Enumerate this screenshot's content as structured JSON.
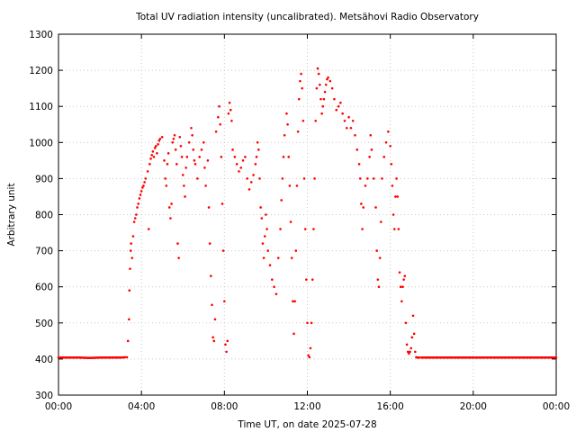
{
  "chart_data": {
    "type": "scatter",
    "title": "Total UV radiation intensity (uncalibrated). Metsähovi Radio Observatory",
    "xlabel": "Time UT, on date 2025-07-28",
    "ylabel": "Arbitrary unit",
    "x_unit": "hours UT",
    "xlim": [
      0,
      24
    ],
    "ylim": [
      300,
      1300
    ],
    "grid": true,
    "grid_style": "dotted",
    "legend": "none",
    "marker_color": "#ff0000",
    "x_ticks": [
      {
        "value": 0,
        "label": "00:00"
      },
      {
        "value": 4,
        "label": "04:00"
      },
      {
        "value": 8,
        "label": "08:00"
      },
      {
        "value": 12,
        "label": "12:00"
      },
      {
        "value": 16,
        "label": "16:00"
      },
      {
        "value": 20,
        "label": "20:00"
      },
      {
        "value": 24,
        "label": "00:00"
      }
    ],
    "y_ticks": [
      300,
      400,
      500,
      600,
      700,
      800,
      900,
      1000,
      1100,
      1200,
      1300
    ],
    "series": [
      {
        "points": [
          [
            0.0,
            404
          ],
          [
            0.5,
            404
          ],
          [
            1.0,
            404
          ],
          [
            1.5,
            403
          ],
          [
            2.0,
            404
          ],
          [
            2.5,
            404
          ],
          [
            3.0,
            404
          ],
          [
            3.3,
            405
          ],
          [
            3.35,
            450
          ],
          [
            3.4,
            510
          ],
          [
            3.42,
            590
          ],
          [
            3.45,
            650
          ],
          [
            3.48,
            700
          ],
          [
            3.5,
            720
          ],
          [
            3.55,
            680
          ],
          [
            3.6,
            740
          ],
          [
            3.65,
            780
          ],
          [
            3.7,
            790
          ],
          [
            3.75,
            800
          ],
          [
            3.8,
            820
          ],
          [
            3.85,
            830
          ],
          [
            3.9,
            845
          ],
          [
            3.95,
            855
          ],
          [
            4.0,
            865
          ],
          [
            4.05,
            875
          ],
          [
            4.1,
            880
          ],
          [
            4.15,
            890
          ],
          [
            4.2,
            900
          ],
          [
            4.3,
            920
          ],
          [
            4.35,
            760
          ],
          [
            4.4,
            940
          ],
          [
            4.45,
            955
          ],
          [
            4.5,
            965
          ],
          [
            4.55,
            975
          ],
          [
            4.6,
            960
          ],
          [
            4.65,
            985
          ],
          [
            4.7,
            990
          ],
          [
            4.75,
            970
          ],
          [
            4.8,
            995
          ],
          [
            4.85,
            1005
          ],
          [
            4.9,
            1010
          ],
          [
            5.0,
            1015
          ],
          [
            5.1,
            950
          ],
          [
            5.15,
            900
          ],
          [
            5.2,
            880
          ],
          [
            5.25,
            940
          ],
          [
            5.3,
            970
          ],
          [
            5.35,
            820
          ],
          [
            5.4,
            790
          ],
          [
            5.45,
            830
          ],
          [
            5.5,
            1000
          ],
          [
            5.55,
            1010
          ],
          [
            5.6,
            1020
          ],
          [
            5.65,
            980
          ],
          [
            5.7,
            940
          ],
          [
            5.75,
            720
          ],
          [
            5.8,
            680
          ],
          [
            5.85,
            1015
          ],
          [
            5.9,
            990
          ],
          [
            5.95,
            960
          ],
          [
            6.0,
            910
          ],
          [
            6.05,
            880
          ],
          [
            6.1,
            850
          ],
          [
            6.15,
            930
          ],
          [
            6.2,
            960
          ],
          [
            6.3,
            1000
          ],
          [
            6.4,
            1040
          ],
          [
            6.45,
            1020
          ],
          [
            6.5,
            980
          ],
          [
            6.55,
            950
          ],
          [
            6.6,
            940
          ],
          [
            6.7,
            900
          ],
          [
            6.8,
            960
          ],
          [
            6.9,
            980
          ],
          [
            7.0,
            1000
          ],
          [
            7.05,
            930
          ],
          [
            7.1,
            880
          ],
          [
            7.2,
            950
          ],
          [
            7.25,
            820
          ],
          [
            7.3,
            720
          ],
          [
            7.35,
            630
          ],
          [
            7.4,
            550
          ],
          [
            7.45,
            460
          ],
          [
            7.5,
            450
          ],
          [
            7.55,
            510
          ],
          [
            7.6,
            1030
          ],
          [
            7.7,
            1070
          ],
          [
            7.75,
            1100
          ],
          [
            7.8,
            1050
          ],
          [
            7.85,
            960
          ],
          [
            7.9,
            830
          ],
          [
            7.95,
            700
          ],
          [
            8.0,
            560
          ],
          [
            8.05,
            440
          ],
          [
            8.1,
            420
          ],
          [
            8.15,
            450
          ],
          [
            8.2,
            1080
          ],
          [
            8.25,
            1110
          ],
          [
            8.3,
            1090
          ],
          [
            8.35,
            1060
          ],
          [
            8.4,
            980
          ],
          [
            8.5,
            960
          ],
          [
            8.6,
            940
          ],
          [
            8.7,
            920
          ],
          [
            8.8,
            930
          ],
          [
            8.9,
            950
          ],
          [
            9.0,
            960
          ],
          [
            9.1,
            900
          ],
          [
            9.2,
            870
          ],
          [
            9.3,
            890
          ],
          [
            9.4,
            910
          ],
          [
            9.5,
            940
          ],
          [
            9.55,
            960
          ],
          [
            9.6,
            1000
          ],
          [
            9.65,
            980
          ],
          [
            9.7,
            900
          ],
          [
            9.75,
            820
          ],
          [
            9.8,
            790
          ],
          [
            9.85,
            720
          ],
          [
            9.9,
            680
          ],
          [
            9.95,
            740
          ],
          [
            10.0,
            800
          ],
          [
            10.05,
            760
          ],
          [
            10.1,
            700
          ],
          [
            10.2,
            660
          ],
          [
            10.3,
            620
          ],
          [
            10.4,
            600
          ],
          [
            10.5,
            580
          ],
          [
            10.6,
            680
          ],
          [
            10.7,
            760
          ],
          [
            10.75,
            840
          ],
          [
            10.8,
            900
          ],
          [
            10.85,
            960
          ],
          [
            10.9,
            1020
          ],
          [
            11.0,
            1080
          ],
          [
            11.05,
            1050
          ],
          [
            11.1,
            960
          ],
          [
            11.15,
            880
          ],
          [
            11.2,
            780
          ],
          [
            11.25,
            680
          ],
          [
            11.3,
            560
          ],
          [
            11.35,
            470
          ],
          [
            11.4,
            560
          ],
          [
            11.45,
            700
          ],
          [
            11.5,
            880
          ],
          [
            11.55,
            1030
          ],
          [
            11.6,
            1120
          ],
          [
            11.65,
            1170
          ],
          [
            11.7,
            1190
          ],
          [
            11.75,
            1150
          ],
          [
            11.8,
            1060
          ],
          [
            11.85,
            900
          ],
          [
            11.9,
            760
          ],
          [
            11.95,
            620
          ],
          [
            12.0,
            500
          ],
          [
            12.05,
            410
          ],
          [
            12.1,
            405
          ],
          [
            12.15,
            430
          ],
          [
            12.2,
            500
          ],
          [
            12.25,
            620
          ],
          [
            12.3,
            760
          ],
          [
            12.35,
            900
          ],
          [
            12.4,
            1060
          ],
          [
            12.45,
            1150
          ],
          [
            12.5,
            1205
          ],
          [
            12.55,
            1190
          ],
          [
            12.6,
            1160
          ],
          [
            12.65,
            1120
          ],
          [
            12.7,
            1080
          ],
          [
            12.75,
            1100
          ],
          [
            12.8,
            1120
          ],
          [
            12.85,
            1140
          ],
          [
            12.9,
            1160
          ],
          [
            12.95,
            1175
          ],
          [
            13.0,
            1180
          ],
          [
            13.1,
            1170
          ],
          [
            13.2,
            1150
          ],
          [
            13.3,
            1120
          ],
          [
            13.4,
            1090
          ],
          [
            13.5,
            1100
          ],
          [
            13.6,
            1110
          ],
          [
            13.7,
            1080
          ],
          [
            13.8,
            1060
          ],
          [
            13.9,
            1040
          ],
          [
            14.0,
            1070
          ],
          [
            14.1,
            1040
          ],
          [
            14.2,
            1060
          ],
          [
            14.3,
            1020
          ],
          [
            14.4,
            980
          ],
          [
            14.5,
            940
          ],
          [
            14.55,
            900
          ],
          [
            14.6,
            830
          ],
          [
            14.65,
            760
          ],
          [
            14.7,
            820
          ],
          [
            14.8,
            880
          ],
          [
            14.9,
            900
          ],
          [
            15.0,
            960
          ],
          [
            15.05,
            1020
          ],
          [
            15.1,
            980
          ],
          [
            15.2,
            900
          ],
          [
            15.3,
            820
          ],
          [
            15.35,
            700
          ],
          [
            15.4,
            620
          ],
          [
            15.45,
            600
          ],
          [
            15.5,
            680
          ],
          [
            15.55,
            780
          ],
          [
            15.6,
            900
          ],
          [
            15.7,
            960
          ],
          [
            15.8,
            1000
          ],
          [
            15.9,
            1030
          ],
          [
            16.0,
            990
          ],
          [
            16.05,
            940
          ],
          [
            16.1,
            880
          ],
          [
            16.15,
            800
          ],
          [
            16.2,
            760
          ],
          [
            16.25,
            850
          ],
          [
            16.3,
            900
          ],
          [
            16.35,
            850
          ],
          [
            16.4,
            760
          ],
          [
            16.45,
            640
          ],
          [
            16.5,
            600
          ],
          [
            16.55,
            560
          ],
          [
            16.6,
            600
          ],
          [
            16.65,
            620
          ],
          [
            16.7,
            630
          ],
          [
            16.75,
            500
          ],
          [
            16.8,
            440
          ],
          [
            16.85,
            420
          ],
          [
            16.9,
            415
          ],
          [
            16.95,
            420
          ],
          [
            17.0,
            430
          ],
          [
            17.05,
            460
          ],
          [
            17.1,
            520
          ],
          [
            17.15,
            470
          ],
          [
            17.2,
            420
          ],
          [
            17.25,
            405
          ],
          [
            17.3,
            404
          ],
          [
            17.5,
            404
          ],
          [
            18.0,
            404
          ],
          [
            18.5,
            404
          ],
          [
            19.0,
            404
          ],
          [
            19.5,
            404
          ],
          [
            20.0,
            404
          ],
          [
            20.5,
            404
          ],
          [
            21.0,
            404
          ],
          [
            21.5,
            404
          ],
          [
            22.0,
            404
          ],
          [
            22.5,
            404
          ],
          [
            23.0,
            404
          ],
          [
            23.5,
            404
          ],
          [
            24.0,
            404
          ]
        ]
      }
    ]
  }
}
